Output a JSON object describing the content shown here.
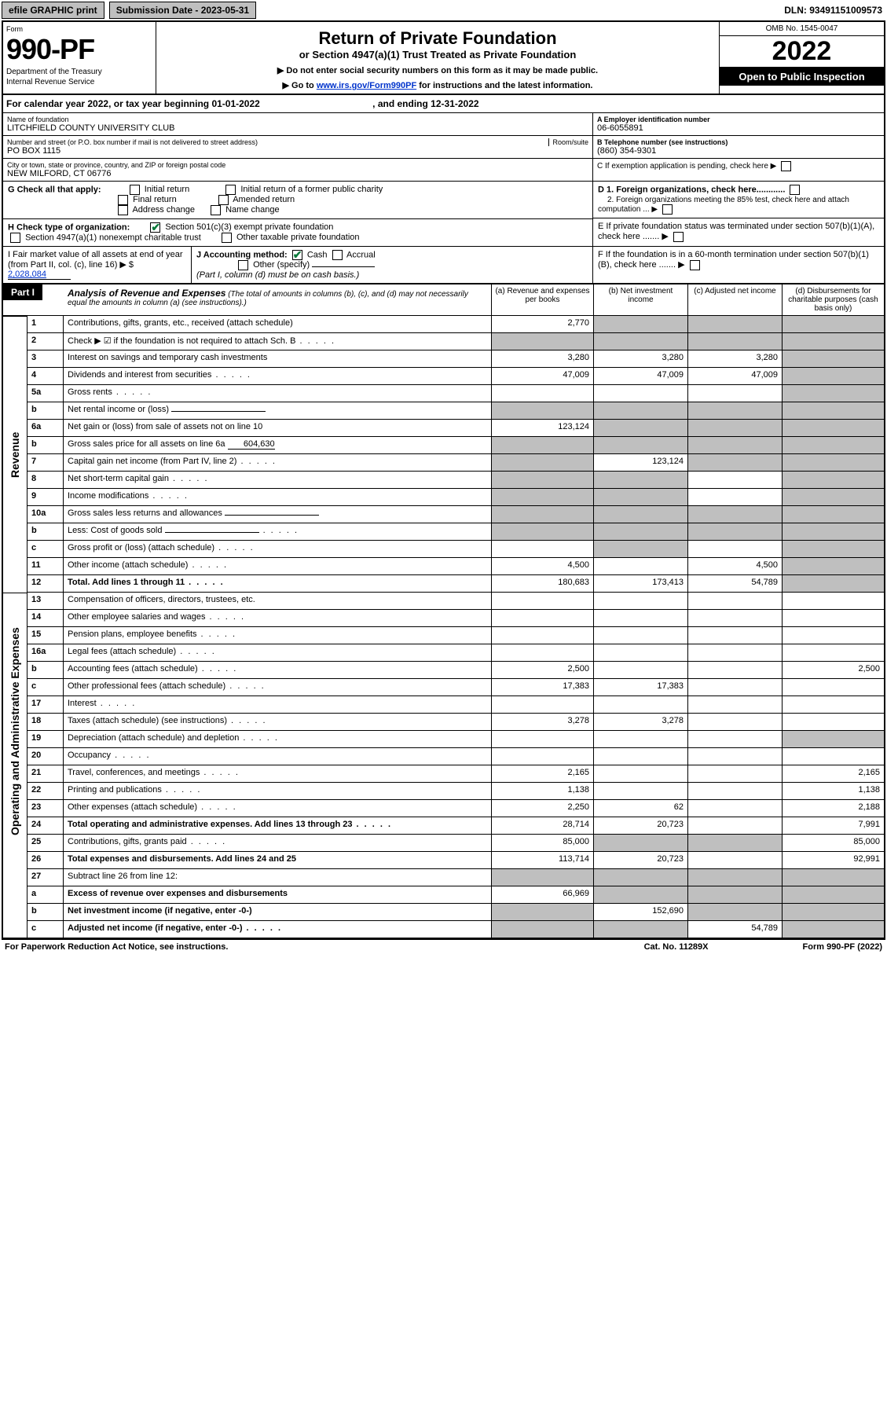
{
  "topbar": {
    "efile": "efile GRAPHIC print",
    "subdate": "Submission Date - 2023-05-31",
    "dln": "DLN: 93491151009573"
  },
  "header": {
    "form_label": "Form",
    "form_num": "990-PF",
    "dept": "Department of the Treasury",
    "irs": "Internal Revenue Service",
    "title": "Return of Private Foundation",
    "subtitle": "or Section 4947(a)(1) Trust Treated as Private Foundation",
    "note1": "▶ Do not enter social security numbers on this form as it may be made public.",
    "note2_pre": "▶ Go to ",
    "note2_link": "www.irs.gov/Form990PF",
    "note2_post": " for instructions and the latest information.",
    "omb": "OMB No. 1545-0047",
    "year": "2022",
    "open": "Open to Public Inspection"
  },
  "cal": {
    "text": "For calendar year 2022, or tax year beginning 01-01-2022",
    "end": ", and ending 12-31-2022"
  },
  "info": {
    "name_lbl": "Name of foundation",
    "name_val": "LITCHFIELD COUNTY UNIVERSITY CLUB",
    "addr_lbl": "Number and street (or P.O. box number if mail is not delivered to street address)",
    "addr_val": "PO BOX 1115",
    "room_lbl": "Room/suite",
    "city_lbl": "City or town, state or province, country, and ZIP or foreign postal code",
    "city_val": "NEW MILFORD, CT  06776",
    "a_lbl": "A Employer identification number",
    "a_val": "06-6055891",
    "b_lbl": "B Telephone number (see instructions)",
    "b_val": "(860) 354-9301",
    "c_lbl": "C If exemption application is pending, check here ▶"
  },
  "g": {
    "lbl": "G Check all that apply:",
    "o1": "Initial return",
    "o2": "Final return",
    "o3": "Address change",
    "o4": "Initial return of a former public charity",
    "o5": "Amended return",
    "o6": "Name change"
  },
  "h": {
    "lbl": "H Check type of organization:",
    "o1": "Section 501(c)(3) exempt private foundation",
    "o2": "Section 4947(a)(1) nonexempt charitable trust",
    "o3": "Other taxable private foundation"
  },
  "i": {
    "lbl": "I Fair market value of all assets at end of year (from Part II, col. (c), line 16) ▶ $",
    "val": "2,028,084"
  },
  "j": {
    "lbl": "J Accounting method:",
    "o1": "Cash",
    "o2": "Accrual",
    "o3": "Other (specify)",
    "note": "(Part I, column (d) must be on cash basis.)"
  },
  "d": {
    "d1": "D 1. Foreign organizations, check here............",
    "d2": "2. Foreign organizations meeting the 85% test, check here and attach computation ...  ▶"
  },
  "e": {
    "txt": "E If private foundation status was terminated under section 507(b)(1)(A), check here ......."
  },
  "f": {
    "txt": "F If the foundation is in a 60-month termination under section 507(b)(1)(B), check here ......."
  },
  "part1": {
    "badge": "Part I",
    "title": "Analysis of Revenue and Expenses",
    "note": "(The total of amounts in columns (b), (c), and (d) may not necessarily equal the amounts in column (a) (see instructions).)",
    "col_a": "(a)  Revenue and expenses per books",
    "col_b": "(b)  Net investment income",
    "col_c": "(c)  Adjusted net income",
    "col_d": "(d)  Disbursements for charitable purposes (cash basis only)"
  },
  "side": {
    "rev": "Revenue",
    "exp": "Operating and Administrative Expenses"
  },
  "rows": [
    {
      "ln": "1",
      "desc": "Contributions, gifts, grants, etc., received (attach schedule)",
      "a": "2,770",
      "b": "",
      "c": "",
      "d": "",
      "a_grey": false,
      "b_grey": true,
      "c_grey": true,
      "d_grey": true
    },
    {
      "ln": "2",
      "desc": "Check ▶ ☑ if the foundation is not required to attach Sch. B",
      "a": "",
      "b": "",
      "c": "",
      "d": "",
      "a_grey": true,
      "b_grey": true,
      "c_grey": true,
      "d_grey": true,
      "dots": true
    },
    {
      "ln": "3",
      "desc": "Interest on savings and temporary cash investments",
      "a": "3,280",
      "b": "3,280",
      "c": "3,280",
      "d": "",
      "d_grey": true
    },
    {
      "ln": "4",
      "desc": "Dividends and interest from securities",
      "a": "47,009",
      "b": "47,009",
      "c": "47,009",
      "d": "",
      "dots": true,
      "d_grey": true
    },
    {
      "ln": "5a",
      "desc": "Gross rents",
      "a": "",
      "b": "",
      "c": "",
      "d": "",
      "dots": true,
      "d_grey": true
    },
    {
      "ln": "b",
      "desc": "Net rental income or (loss)",
      "a": "",
      "b": "",
      "c": "",
      "d": "",
      "a_grey": true,
      "b_grey": true,
      "c_grey": true,
      "d_grey": true,
      "inline": true
    },
    {
      "ln": "6a",
      "desc": "Net gain or (loss) from sale of assets not on line 10",
      "a": "123,124",
      "b": "",
      "c": "",
      "d": "",
      "b_grey": true,
      "c_grey": true,
      "d_grey": true
    },
    {
      "ln": "b",
      "desc": "Gross sales price for all assets on line 6a",
      "inline_val": "604,630",
      "a": "",
      "b": "",
      "c": "",
      "d": "",
      "a_grey": true,
      "b_grey": true,
      "c_grey": true,
      "d_grey": true
    },
    {
      "ln": "7",
      "desc": "Capital gain net income (from Part IV, line 2)",
      "a": "",
      "b": "123,124",
      "c": "",
      "d": "",
      "dots": true,
      "a_grey": true,
      "c_grey": true,
      "d_grey": true
    },
    {
      "ln": "8",
      "desc": "Net short-term capital gain",
      "a": "",
      "b": "",
      "c": "",
      "d": "",
      "dots": true,
      "a_grey": true,
      "b_grey": true,
      "d_grey": true
    },
    {
      "ln": "9",
      "desc": "Income modifications",
      "a": "",
      "b": "",
      "c": "",
      "d": "",
      "dots": true,
      "a_grey": true,
      "b_grey": true,
      "d_grey": true
    },
    {
      "ln": "10a",
      "desc": "Gross sales less returns and allowances",
      "a": "",
      "b": "",
      "c": "",
      "d": "",
      "a_grey": true,
      "b_grey": true,
      "c_grey": true,
      "d_grey": true,
      "inline": true
    },
    {
      "ln": "b",
      "desc": "Less: Cost of goods sold",
      "a": "",
      "b": "",
      "c": "",
      "d": "",
      "dots": true,
      "a_grey": true,
      "b_grey": true,
      "c_grey": true,
      "d_grey": true,
      "inline": true
    },
    {
      "ln": "c",
      "desc": "Gross profit or (loss) (attach schedule)",
      "a": "",
      "b": "",
      "c": "",
      "d": "",
      "dots": true,
      "b_grey": true,
      "d_grey": true
    },
    {
      "ln": "11",
      "desc": "Other income (attach schedule)",
      "a": "4,500",
      "b": "",
      "c": "4,500",
      "d": "",
      "dots": true,
      "d_grey": true
    },
    {
      "ln": "12",
      "desc": "Total. Add lines 1 through 11",
      "a": "180,683",
      "b": "173,413",
      "c": "54,789",
      "d": "",
      "dots": true,
      "bold": true,
      "d_grey": true
    }
  ],
  "exp_rows": [
    {
      "ln": "13",
      "desc": "Compensation of officers, directors, trustees, etc.",
      "a": "",
      "b": "",
      "c": "",
      "d": ""
    },
    {
      "ln": "14",
      "desc": "Other employee salaries and wages",
      "a": "",
      "b": "",
      "c": "",
      "d": "",
      "dots": true
    },
    {
      "ln": "15",
      "desc": "Pension plans, employee benefits",
      "a": "",
      "b": "",
      "c": "",
      "d": "",
      "dots": true
    },
    {
      "ln": "16a",
      "desc": "Legal fees (attach schedule)",
      "a": "",
      "b": "",
      "c": "",
      "d": "",
      "dots": true
    },
    {
      "ln": "b",
      "desc": "Accounting fees (attach schedule)",
      "a": "2,500",
      "b": "",
      "c": "",
      "d": "2,500",
      "dots": true
    },
    {
      "ln": "c",
      "desc": "Other professional fees (attach schedule)",
      "a": "17,383",
      "b": "17,383",
      "c": "",
      "d": "",
      "dots": true
    },
    {
      "ln": "17",
      "desc": "Interest",
      "a": "",
      "b": "",
      "c": "",
      "d": "",
      "dots": true
    },
    {
      "ln": "18",
      "desc": "Taxes (attach schedule) (see instructions)",
      "a": "3,278",
      "b": "3,278",
      "c": "",
      "d": "",
      "dots": true
    },
    {
      "ln": "19",
      "desc": "Depreciation (attach schedule) and depletion",
      "a": "",
      "b": "",
      "c": "",
      "d": "",
      "dots": true,
      "d_grey": true
    },
    {
      "ln": "20",
      "desc": "Occupancy",
      "a": "",
      "b": "",
      "c": "",
      "d": "",
      "dots": true
    },
    {
      "ln": "21",
      "desc": "Travel, conferences, and meetings",
      "a": "2,165",
      "b": "",
      "c": "",
      "d": "2,165",
      "dots": true
    },
    {
      "ln": "22",
      "desc": "Printing and publications",
      "a": "1,138",
      "b": "",
      "c": "",
      "d": "1,138",
      "dots": true
    },
    {
      "ln": "23",
      "desc": "Other expenses (attach schedule)",
      "a": "2,250",
      "b": "62",
      "c": "",
      "d": "2,188",
      "dots": true
    },
    {
      "ln": "24",
      "desc": "Total operating and administrative expenses. Add lines 13 through 23",
      "a": "28,714",
      "b": "20,723",
      "c": "",
      "d": "7,991",
      "dots": true,
      "bold": true
    },
    {
      "ln": "25",
      "desc": "Contributions, gifts, grants paid",
      "a": "85,000",
      "b": "",
      "c": "",
      "d": "85,000",
      "dots": true,
      "b_grey": true,
      "c_grey": true
    },
    {
      "ln": "26",
      "desc": "Total expenses and disbursements. Add lines 24 and 25",
      "a": "113,714",
      "b": "20,723",
      "c": "",
      "d": "92,991",
      "bold": true
    }
  ],
  "rows27": [
    {
      "ln": "27",
      "desc": "Subtract line 26 from line 12:",
      "a": "",
      "b": "",
      "c": "",
      "d": "",
      "a_grey": true,
      "b_grey": true,
      "c_grey": true,
      "d_grey": true
    },
    {
      "ln": "a",
      "desc": "Excess of revenue over expenses and disbursements",
      "a": "66,969",
      "b": "",
      "c": "",
      "d": "",
      "bold": true,
      "b_grey": true,
      "c_grey": true,
      "d_grey": true
    },
    {
      "ln": "b",
      "desc": "Net investment income (if negative, enter -0-)",
      "a": "",
      "b": "152,690",
      "c": "",
      "d": "",
      "bold": true,
      "a_grey": true,
      "c_grey": true,
      "d_grey": true
    },
    {
      "ln": "c",
      "desc": "Adjusted net income (if negative, enter -0-)",
      "a": "",
      "b": "",
      "c": "54,789",
      "d": "",
      "bold": true,
      "dots": true,
      "a_grey": true,
      "b_grey": true,
      "d_grey": true
    }
  ],
  "footer": {
    "l": "For Paperwork Reduction Act Notice, see instructions.",
    "c": "Cat. No. 11289X",
    "r": "Form 990-PF (2022)"
  },
  "colors": {
    "grey": "#bfbfbf",
    "link": "#0033cc",
    "check": "#0a7a3a"
  }
}
